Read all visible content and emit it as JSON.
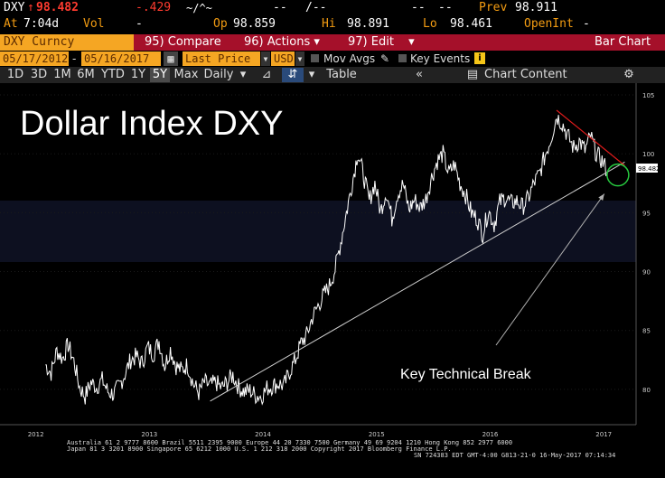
{
  "quote": {
    "ticker": "DXY",
    "last": "98.482",
    "change": "-.429",
    "change_spark": "~/^~",
    "dashes1": "--",
    "slash": "/--",
    "dashes2": "--",
    "dashes3": "--",
    "prev_label": "Prev",
    "prev_value": "98.911",
    "at_label": "At",
    "at_value": "7:04d",
    "vol_label": "Vol",
    "vol_value": "-",
    "op_label": "Op",
    "op_value": "98.859",
    "hi_label": "Hi",
    "hi_value": "98.891",
    "lo_label": "Lo",
    "lo_value": "98.461",
    "openint_label": "OpenInt",
    "openint_value": "-"
  },
  "menubar": {
    "security": "DXY Curncy",
    "compare": "Compare",
    "compare_num": "95)",
    "actions": "Actions",
    "actions_num": "96)",
    "edit": "Edit",
    "edit_num": "97)",
    "chart_type": "Bar Chart"
  },
  "settings": {
    "start_date": "05/17/2012",
    "end_date": "05/16/2017",
    "price_field": "Last Price",
    "currency": "USD",
    "mov_avgs": "Mov Avgs",
    "key_events": "Key Events"
  },
  "toolbar": {
    "ranges": [
      "1D",
      "3D",
      "1M",
      "6M",
      "YTD",
      "1Y",
      "5Y",
      "Max"
    ],
    "selected_range": "5Y",
    "period": "Daily",
    "table": "Table",
    "chart_content": "Chart Content"
  },
  "chart_data": {
    "type": "line",
    "title": "Dollar Index DXY",
    "annotation": "Key Technical Break",
    "x_tick_labels": [
      "2012",
      "2013",
      "2014",
      "2015",
      "2016",
      "2017"
    ],
    "y_tick_labels": [
      "80",
      "85",
      "90",
      "95",
      "100",
      "105"
    ],
    "ylim": [
      77,
      106
    ],
    "last_value_label": "98.482",
    "series": [
      {
        "values": [
          [
            2012.4,
            82.1
          ],
          [
            2012.45,
            81.4
          ],
          [
            2012.5,
            83.3
          ],
          [
            2012.55,
            82.6
          ],
          [
            2012.6,
            83.8
          ],
          [
            2012.65,
            82.4
          ],
          [
            2012.7,
            80.2
          ],
          [
            2012.75,
            79.4
          ],
          [
            2012.8,
            80.6
          ],
          [
            2012.85,
            80.2
          ],
          [
            2012.9,
            80.8
          ],
          [
            2012.95,
            79.8
          ],
          [
            2013.0,
            79.6
          ],
          [
            2013.05,
            80.3
          ],
          [
            2013.1,
            81.3
          ],
          [
            2013.15,
            82.5
          ],
          [
            2013.2,
            82.8
          ],
          [
            2013.25,
            82.2
          ],
          [
            2013.3,
            83.6
          ],
          [
            2013.35,
            83.0
          ],
          [
            2013.4,
            84.1
          ],
          [
            2013.45,
            82.0
          ],
          [
            2013.5,
            83.4
          ],
          [
            2013.55,
            82.0
          ],
          [
            2013.6,
            81.6
          ],
          [
            2013.65,
            82.1
          ],
          [
            2013.7,
            80.5
          ],
          [
            2013.75,
            79.7
          ],
          [
            2013.8,
            80.6
          ],
          [
            2013.85,
            80.3
          ],
          [
            2013.9,
            80.6
          ],
          [
            2013.95,
            80.1
          ],
          [
            2014.0,
            80.6
          ],
          [
            2014.05,
            81.2
          ],
          [
            2014.1,
            80.2
          ],
          [
            2014.15,
            79.8
          ],
          [
            2014.2,
            79.9
          ],
          [
            2014.25,
            79.5
          ],
          [
            2014.3,
            79.4
          ],
          [
            2014.35,
            80.1
          ],
          [
            2014.4,
            80.3
          ],
          [
            2014.45,
            80.5
          ],
          [
            2014.5,
            80.3
          ],
          [
            2014.55,
            81.5
          ],
          [
            2014.6,
            82.5
          ],
          [
            2014.65,
            83.9
          ],
          [
            2014.7,
            84.6
          ],
          [
            2014.75,
            86.1
          ],
          [
            2014.8,
            87.1
          ],
          [
            2014.85,
            88.0
          ],
          [
            2014.9,
            88.8
          ],
          [
            2014.95,
            90.2
          ],
          [
            2015.0,
            92.5
          ],
          [
            2015.05,
            95.0
          ],
          [
            2015.1,
            97.5
          ],
          [
            2015.15,
            100.1
          ],
          [
            2015.2,
            98.2
          ],
          [
            2015.25,
            96.0
          ],
          [
            2015.3,
            97.5
          ],
          [
            2015.35,
            95.1
          ],
          [
            2015.4,
            96.8
          ],
          [
            2015.45,
            94.5
          ],
          [
            2015.5,
            96.6
          ],
          [
            2015.55,
            97.4
          ],
          [
            2015.6,
            95.3
          ],
          [
            2015.65,
            96.1
          ],
          [
            2015.7,
            95.4
          ],
          [
            2015.75,
            96.2
          ],
          [
            2015.8,
            98.0
          ],
          [
            2015.85,
            99.4
          ],
          [
            2015.9,
            100.0
          ],
          [
            2015.95,
            98.3
          ],
          [
            2016.0,
            99.1
          ],
          [
            2016.05,
            97.5
          ],
          [
            2016.1,
            96.5
          ],
          [
            2016.15,
            95.0
          ],
          [
            2016.2,
            94.5
          ],
          [
            2016.25,
            93.2
          ],
          [
            2016.3,
            95.2
          ],
          [
            2016.35,
            94.0
          ],
          [
            2016.4,
            95.9
          ],
          [
            2016.45,
            96.3
          ],
          [
            2016.5,
            95.8
          ],
          [
            2016.55,
            96.0
          ],
          [
            2016.6,
            95.5
          ],
          [
            2016.65,
            96.2
          ],
          [
            2016.7,
            97.5
          ],
          [
            2016.75,
            98.3
          ],
          [
            2016.8,
            99.9
          ],
          [
            2016.85,
            101.3
          ],
          [
            2016.9,
            103.2
          ],
          [
            2016.95,
            102.6
          ],
          [
            2017.0,
            101.5
          ],
          [
            2017.05,
            100.5
          ],
          [
            2017.1,
            101.1
          ],
          [
            2017.15,
            100.3
          ],
          [
            2017.2,
            101.5
          ],
          [
            2017.25,
            100.0
          ],
          [
            2017.3,
            99.4
          ],
          [
            2017.35,
            98.5
          ]
        ]
      }
    ]
  },
  "footer": {
    "line1": "Australia 61 2 9777 8600 Brazil 5511 2395 9000 Europe 44 20 7330 7500 Germany 49 69 9204 1210 Hong Kong 852 2977 6000",
    "line2": "Japan 81 3 3201 8900      Singapore 65 6212 1000      U.S. 1 212 318 2000      Copyright 2017 Bloomberg Finance L.P.",
    "line3": "SN 724383 EDT  GMT-4:00 G813-21-0 16-May-2017 07:14:34"
  },
  "colors": {
    "accent": "#f5a623",
    "menu_bar": "#a5102a",
    "down": "#ff3b2f"
  }
}
